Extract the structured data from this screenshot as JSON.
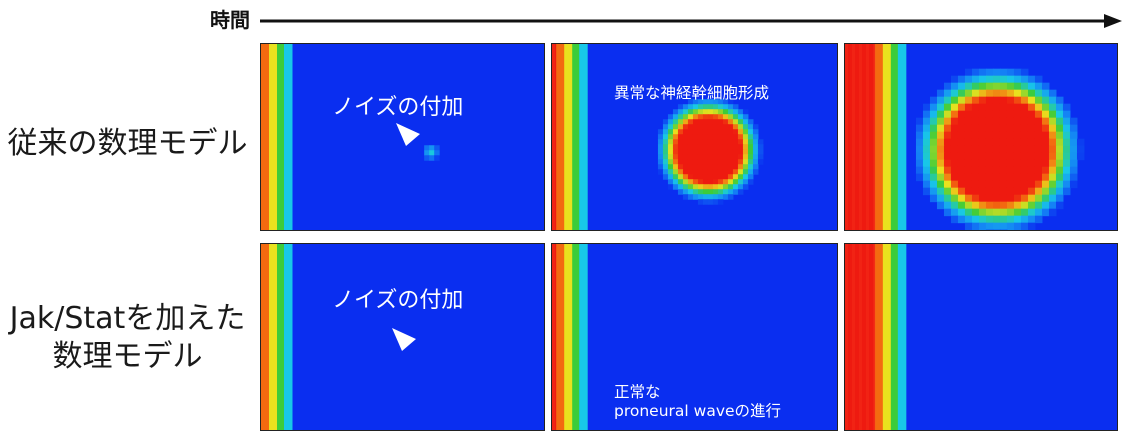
{
  "axis": {
    "time_label": "時間"
  },
  "rows": [
    {
      "label_lines": [
        "従来の数理モデル"
      ]
    },
    {
      "label_lines": [
        "Jak/Statを加えた",
        "数理モデル"
      ]
    }
  ],
  "annotations": {
    "noise_top": "ノイズの付加",
    "noise_bottom": "ノイズの付加",
    "abnormal": "異常な神経幹細胞形成",
    "normal_line1": "正常な",
    "normal_line2": "proneural waveの進行"
  },
  "colors": {
    "field_blue": "#0a2ef0",
    "stripe_red": "#ee1a10",
    "stripe_orange": "#f36a10",
    "stripe_yellow": "#e9e21e",
    "stripe_green": "#3ccc3a",
    "stripe_cyan": "#18c8e8"
  },
  "chart_data": {
    "type": "heatmap",
    "rows": [
      "従来の数理モデル",
      "Jak/Statを加えた数理モデル"
    ],
    "columns_axis": "時間",
    "panels": [
      {
        "row": 0,
        "col": 0,
        "wave_front": 0.08,
        "blob_radius": 0.05
      },
      {
        "row": 0,
        "col": 1,
        "wave_front": 0.12,
        "blob_radius": 0.24
      },
      {
        "row": 0,
        "col": 2,
        "wave_front": 0.22,
        "blob_radius": 0.38
      },
      {
        "row": 1,
        "col": 0,
        "wave_front": 0.08,
        "blob_radius": 0
      },
      {
        "row": 1,
        "col": 1,
        "wave_front": 0.12,
        "blob_radius": 0
      },
      {
        "row": 1,
        "col": 2,
        "wave_front": 0.22,
        "blob_radius": 0
      }
    ]
  }
}
